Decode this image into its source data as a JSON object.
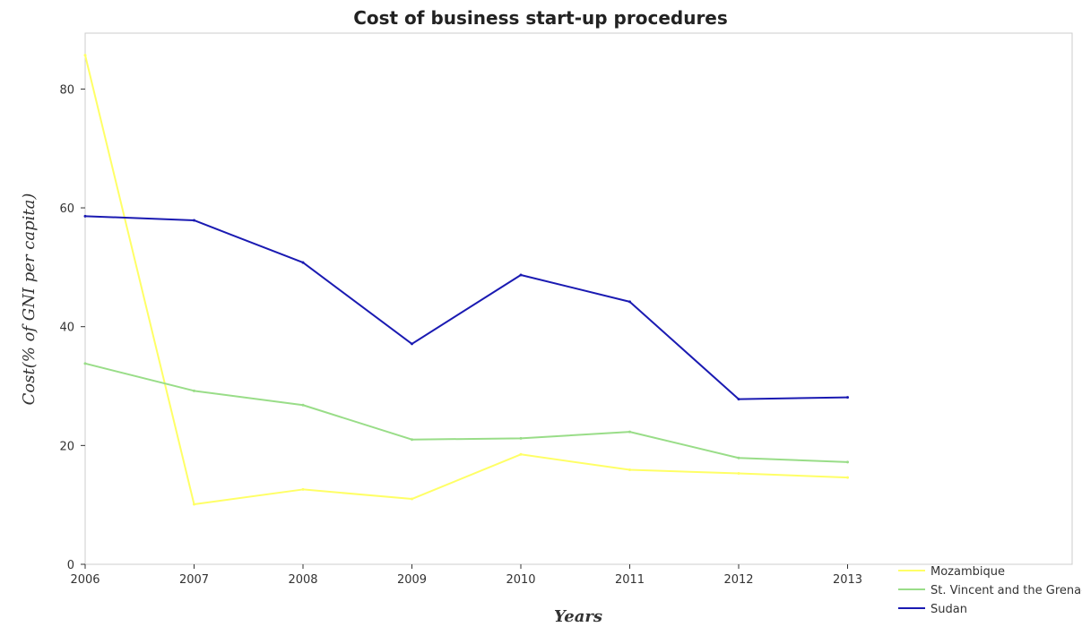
{
  "chart_data": {
    "type": "line",
    "title": "Cost of business start-up procedures",
    "xlabel": "Years",
    "ylabel": "Cost(% of GNI per capita)",
    "categories": [
      "2006",
      "2007",
      "2008",
      "2009",
      "2010",
      "2011",
      "2012",
      "2013"
    ],
    "ylim": [
      0,
      89
    ],
    "yticks": [
      0,
      20,
      40,
      60,
      80
    ],
    "grid": false,
    "legend_position": "bottom-right",
    "series": [
      {
        "name": "Mozambique",
        "color": "#ffff66",
        "values": [
          85.7,
          10.1,
          12.6,
          11.0,
          18.5,
          15.9,
          15.3,
          14.6
        ]
      },
      {
        "name": "St. Vincent and the Grenadines",
        "color": "#99dd88",
        "values": [
          33.8,
          29.2,
          26.8,
          21.0,
          21.2,
          22.3,
          17.9,
          17.2
        ]
      },
      {
        "name": "Sudan",
        "color": "#1a1ab2",
        "values": [
          58.6,
          57.9,
          50.8,
          37.1,
          48.7,
          44.2,
          27.8,
          28.1
        ]
      }
    ]
  }
}
